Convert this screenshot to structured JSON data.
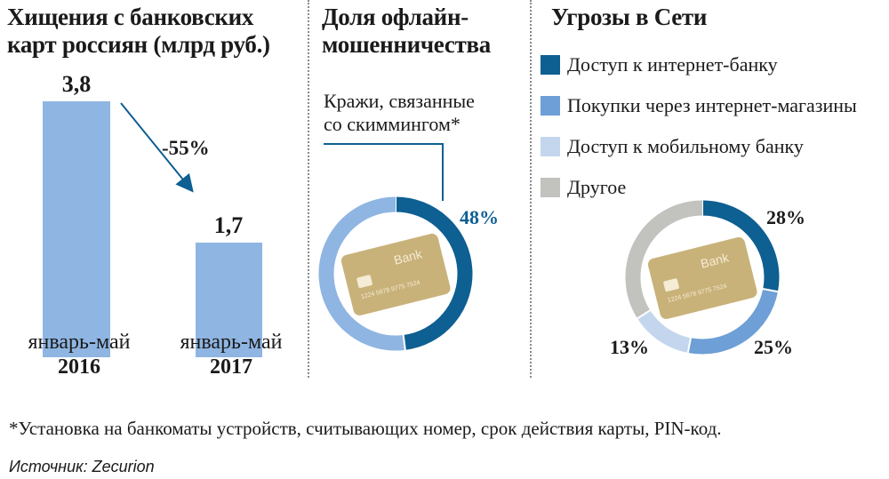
{
  "panel1": {
    "title_line1": "Хищения с банковских",
    "title_line2": "карт россиян (млрд руб.)",
    "change_label": "-55%"
  },
  "panel2": {
    "title_line1": "Доля офлайн-",
    "title_line2": "мошенничества",
    "note_line1": "Кражи, связанные",
    "note_line2": "со скиммингом*"
  },
  "panel3": {
    "title": "Угрозы в Сети"
  },
  "card_text": {
    "bank": "Bank",
    "number": "1224 5678 9775 7524"
  },
  "chart_data": [
    {
      "type": "bar",
      "title": "Хищения с банковских карт россиян (млрд руб.)",
      "categories": [
        {
          "line1": "январь-май",
          "line2": "2016"
        },
        {
          "line1": "январь-май",
          "line2": "2017"
        }
      ],
      "values": [
        3.8,
        1.7
      ],
      "value_labels": [
        "3,8",
        "1,7"
      ],
      "ylim": [
        0,
        3.8
      ],
      "annotation": "-55%",
      "color": "#8fb5e2"
    },
    {
      "type": "pie",
      "title": "Доля офлайн-мошенничества",
      "slices": [
        {
          "name": "Кражи, связанные со скиммингом*",
          "value": 48,
          "label": "48%",
          "color": "#0e5f92"
        },
        {
          "name": "",
          "value": 52,
          "label": "",
          "color": "#8fb5e2"
        }
      ]
    },
    {
      "type": "pie",
      "title": "Угрозы в Сети",
      "legend_placement": "top",
      "slices": [
        {
          "name": "Доступ к интернет-банку",
          "value": 28,
          "label": "28%",
          "color": "#0e5f92"
        },
        {
          "name": "Покупки через интернет-магазины",
          "value": 25,
          "label": "25%",
          "color": "#6e9fd6"
        },
        {
          "name": "Доступ к мобильному банку",
          "value": 13,
          "label": "13%",
          "color": "#c3d6ee"
        },
        {
          "name": "Другое",
          "value": 34,
          "label": "",
          "color": "#c2c2bf"
        }
      ]
    }
  ],
  "footnote": "*Установка на банкоматы устройств, считывающих номер, срок действия карты, PIN-код.",
  "source": "Источник: Zecurion"
}
